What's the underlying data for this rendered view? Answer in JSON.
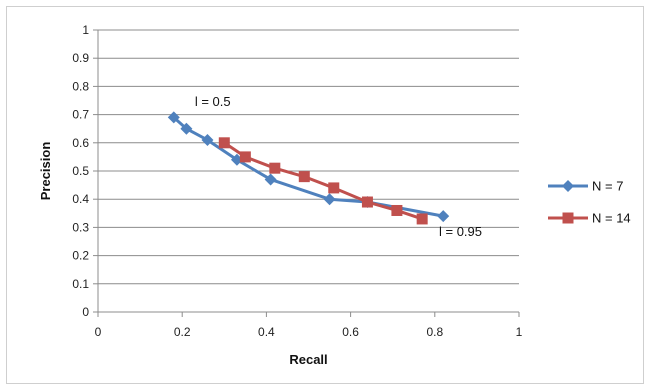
{
  "chart_data": {
    "type": "line",
    "xlabel": "Recall",
    "ylabel": "Precision",
    "xlim": [
      0,
      1
    ],
    "ylim": [
      0,
      1
    ],
    "x_ticks": [
      "0",
      "0.2",
      "0.4",
      "0.6",
      "0.8",
      "1"
    ],
    "y_ticks": [
      "0",
      "0.1",
      "0.2",
      "0.3",
      "0.4",
      "0.5",
      "0.6",
      "0.7",
      "0.8",
      "0.9",
      "1"
    ],
    "grid": "horizontal",
    "legend_position": "right",
    "series": [
      {
        "name": "N = 7",
        "color": "#4f81bd",
        "marker": "diamond",
        "x": [
          0.18,
          0.21,
          0.26,
          0.33,
          0.41,
          0.55,
          0.64,
          0.82
        ],
        "y": [
          0.69,
          0.65,
          0.61,
          0.54,
          0.47,
          0.4,
          0.39,
          0.34
        ]
      },
      {
        "name": "N = 14",
        "color": "#c0504d",
        "marker": "square",
        "x": [
          0.3,
          0.35,
          0.42,
          0.49,
          0.56,
          0.64,
          0.71,
          0.77
        ],
        "y": [
          0.6,
          0.55,
          0.51,
          0.48,
          0.44,
          0.39,
          0.36,
          0.33
        ]
      }
    ],
    "annotations": [
      {
        "text": "l = 0.5",
        "x": 0.23,
        "y": 0.73
      },
      {
        "text": "l = 0.95",
        "x": 0.81,
        "y": 0.27
      }
    ]
  }
}
